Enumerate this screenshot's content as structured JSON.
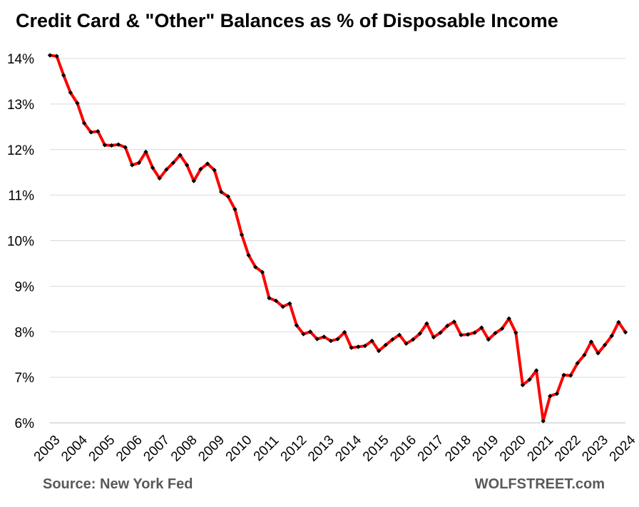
{
  "title": "Credit Card & \"Other\" Balances as % of Disposable Income",
  "source": "Source: New York Fed",
  "brand": "WOLFSTREET.com",
  "colors": {
    "line": "#ff0000",
    "marker": "#000000",
    "grid": "#d9d9d9"
  },
  "chart_data": {
    "type": "line",
    "title": "Credit Card & \"Other\" Balances as % of Disposable Income",
    "xlabel": "",
    "ylabel": "",
    "ylim": [
      6,
      14
    ],
    "ytick_labels": [
      "6%",
      "7%",
      "8%",
      "9%",
      "10%",
      "11%",
      "12%",
      "13%",
      "14%"
    ],
    "xtick_labels": [
      "2003",
      "2004",
      "2005",
      "2006",
      "2007",
      "2008",
      "2009",
      "2010",
      "2011",
      "2012",
      "2013",
      "2014",
      "2015",
      "2016",
      "2017",
      "2018",
      "2019",
      "2020",
      "2021",
      "2022",
      "2023",
      "2024"
    ],
    "grid": true,
    "markers": true,
    "series": [
      {
        "x": [
          "2003 Q1",
          "2003 Q2",
          "2003 Q3",
          "2003 Q4",
          "2004 Q1",
          "2004 Q2",
          "2004 Q3",
          "2004 Q4",
          "2005 Q1",
          "2005 Q2",
          "2005 Q3",
          "2005 Q4",
          "2006 Q1",
          "2006 Q2",
          "2006 Q3",
          "2006 Q4",
          "2007 Q1",
          "2007 Q2",
          "2007 Q3",
          "2007 Q4",
          "2008 Q1",
          "2008 Q2",
          "2008 Q3",
          "2008 Q4",
          "2009 Q1",
          "2009 Q2",
          "2009 Q3",
          "2009 Q4",
          "2010 Q1",
          "2010 Q2",
          "2010 Q3",
          "2010 Q4",
          "2011 Q1",
          "2011 Q2",
          "2011 Q3",
          "2011 Q4",
          "2012 Q1",
          "2012 Q2",
          "2012 Q3",
          "2012 Q4",
          "2013 Q1",
          "2013 Q2",
          "2013 Q3",
          "2013 Q4",
          "2014 Q1",
          "2014 Q2",
          "2014 Q3",
          "2014 Q4",
          "2015 Q1",
          "2015 Q2",
          "2015 Q3",
          "2015 Q4",
          "2016 Q1",
          "2016 Q2",
          "2016 Q3",
          "2016 Q4",
          "2017 Q1",
          "2017 Q2",
          "2017 Q3",
          "2017 Q4",
          "2018 Q1",
          "2018 Q2",
          "2018 Q3",
          "2018 Q4",
          "2019 Q1",
          "2019 Q2",
          "2019 Q3",
          "2019 Q4",
          "2020 Q1",
          "2020 Q2",
          "2020 Q3",
          "2020 Q4",
          "2021 Q1",
          "2021 Q2",
          "2021 Q3",
          "2021 Q4",
          "2022 Q1",
          "2022 Q2",
          "2022 Q3",
          "2022 Q4",
          "2023 Q1",
          "2023 Q2",
          "2023 Q3",
          "2023 Q4",
          "2024 Q1"
        ],
        "values": [
          14.07,
          14.05,
          13.63,
          13.25,
          13.02,
          12.58,
          12.38,
          12.4,
          12.1,
          12.09,
          12.11,
          12.05,
          11.66,
          11.71,
          11.95,
          11.6,
          11.37,
          11.56,
          11.71,
          11.88,
          11.66,
          11.31,
          11.57,
          11.69,
          11.55,
          11.07,
          10.97,
          10.69,
          10.13,
          9.68,
          9.42,
          9.31,
          8.74,
          8.68,
          8.55,
          8.62,
          8.14,
          7.95,
          8.0,
          7.84,
          7.89,
          7.8,
          7.84,
          7.99,
          7.65,
          7.67,
          7.69,
          7.8,
          7.58,
          7.71,
          7.83,
          7.93,
          7.74,
          7.83,
          7.96,
          8.18,
          7.88,
          7.98,
          8.13,
          8.22,
          7.93,
          7.94,
          7.98,
          8.09,
          7.83,
          7.97,
          8.07,
          8.29,
          7.98,
          6.83,
          6.95,
          7.15,
          6.04,
          6.59,
          6.64,
          7.05,
          7.04,
          7.31,
          7.49,
          7.78,
          7.53,
          7.71,
          7.91,
          8.21,
          7.99
        ]
      }
    ]
  }
}
